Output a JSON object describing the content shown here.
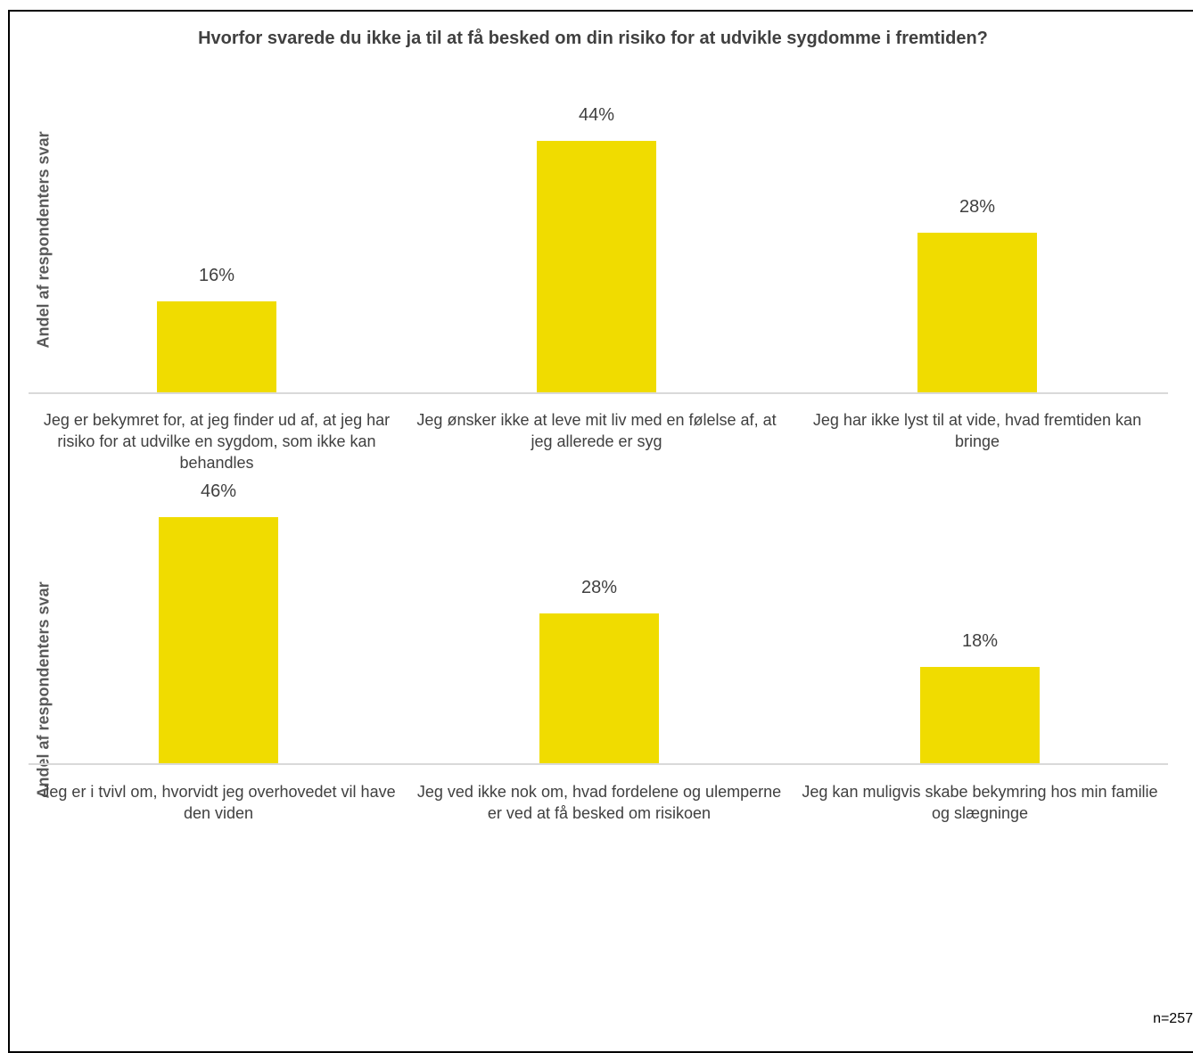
{
  "title": "Hvorfor svarede du ikke ja til at få besked om din risiko for at udvikle sygdomme i fremtiden?",
  "sample_note": "n=257",
  "chart_data": [
    {
      "type": "bar",
      "ylabel": "Andel af respondenters svar",
      "ylim": [
        0,
        50
      ],
      "categories": [
        "Jeg er bekymret for, at jeg finder ud af, at jeg har risiko for at udvilke en sygdom, som ikke kan behandles",
        "Jeg ønsker ikke at leve mit liv med en følelse af, at jeg allerede er syg",
        "Jeg har ikke lyst til at vide, hvad fremtiden kan bringe"
      ],
      "values": [
        16,
        44,
        28
      ],
      "value_labels": [
        "16%",
        "44%",
        "28%"
      ],
      "bar_color": "#F0DC00",
      "grid": false
    },
    {
      "type": "bar",
      "ylabel": "Andel af respondenters svar",
      "ylim": [
        0,
        50
      ],
      "categories": [
        "Jeg er i tvivl om, hvorvidt jeg overhovedet vil have den viden",
        "Jeg ved ikke nok om, hvad fordelene og ulemperne er ved at få besked om risikoen",
        "Jeg kan muligvis skabe bekymring hos min familie og slægninge"
      ],
      "values": [
        46,
        28,
        18
      ],
      "value_labels": [
        "46%",
        "28%",
        "18%"
      ],
      "bar_color": "#F0DC00",
      "grid": false
    }
  ]
}
